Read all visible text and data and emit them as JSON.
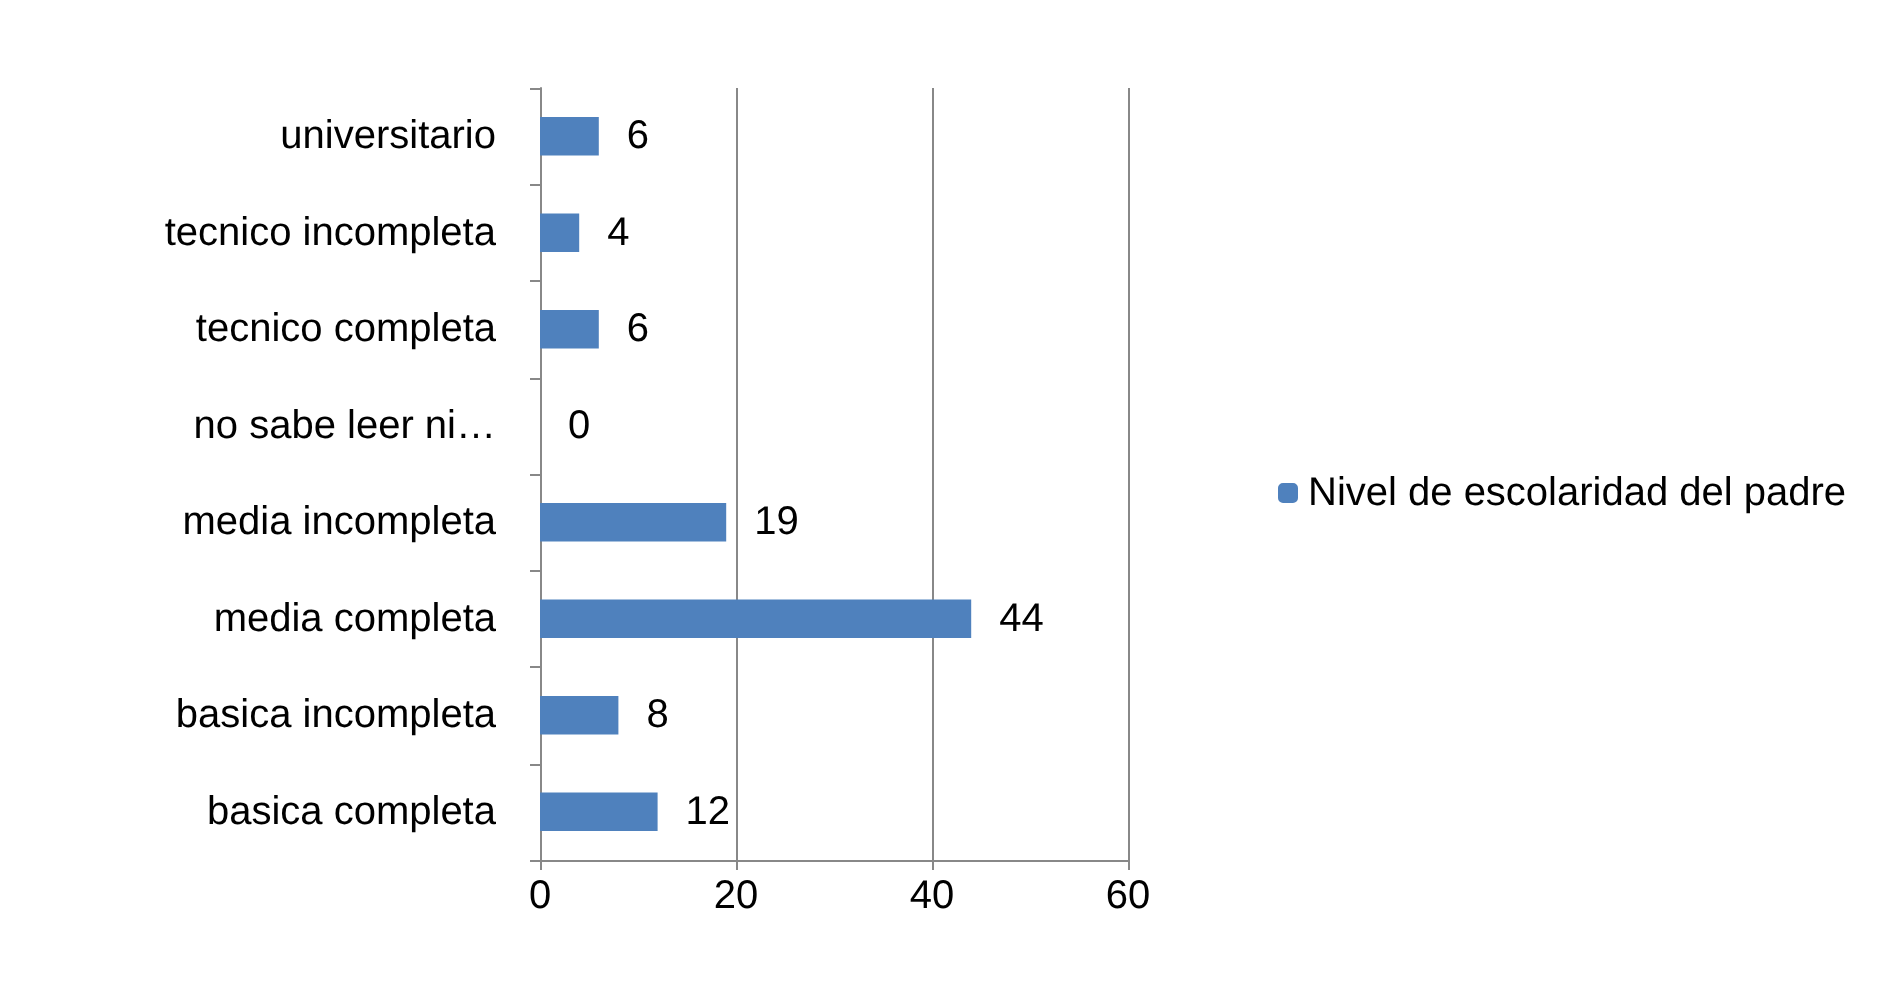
{
  "chart_data": {
    "type": "bar",
    "orientation": "horizontal",
    "categories": [
      "universitario",
      "tecnico incompleta",
      "tecnico completa",
      "no sabe leer ni…",
      "media incompleta",
      "media completa",
      "basica incompleta",
      "basica completa"
    ],
    "series": [
      {
        "name": "Nivel de escolaridad del padre",
        "color": "#4f81bd",
        "values": [
          6,
          4,
          6,
          0,
          19,
          44,
          8,
          12
        ]
      }
    ],
    "xlim": [
      0,
      60
    ],
    "xticks": [
      0,
      20,
      40,
      60
    ],
    "grid": "x",
    "legend": "right",
    "data_labels": true
  }
}
